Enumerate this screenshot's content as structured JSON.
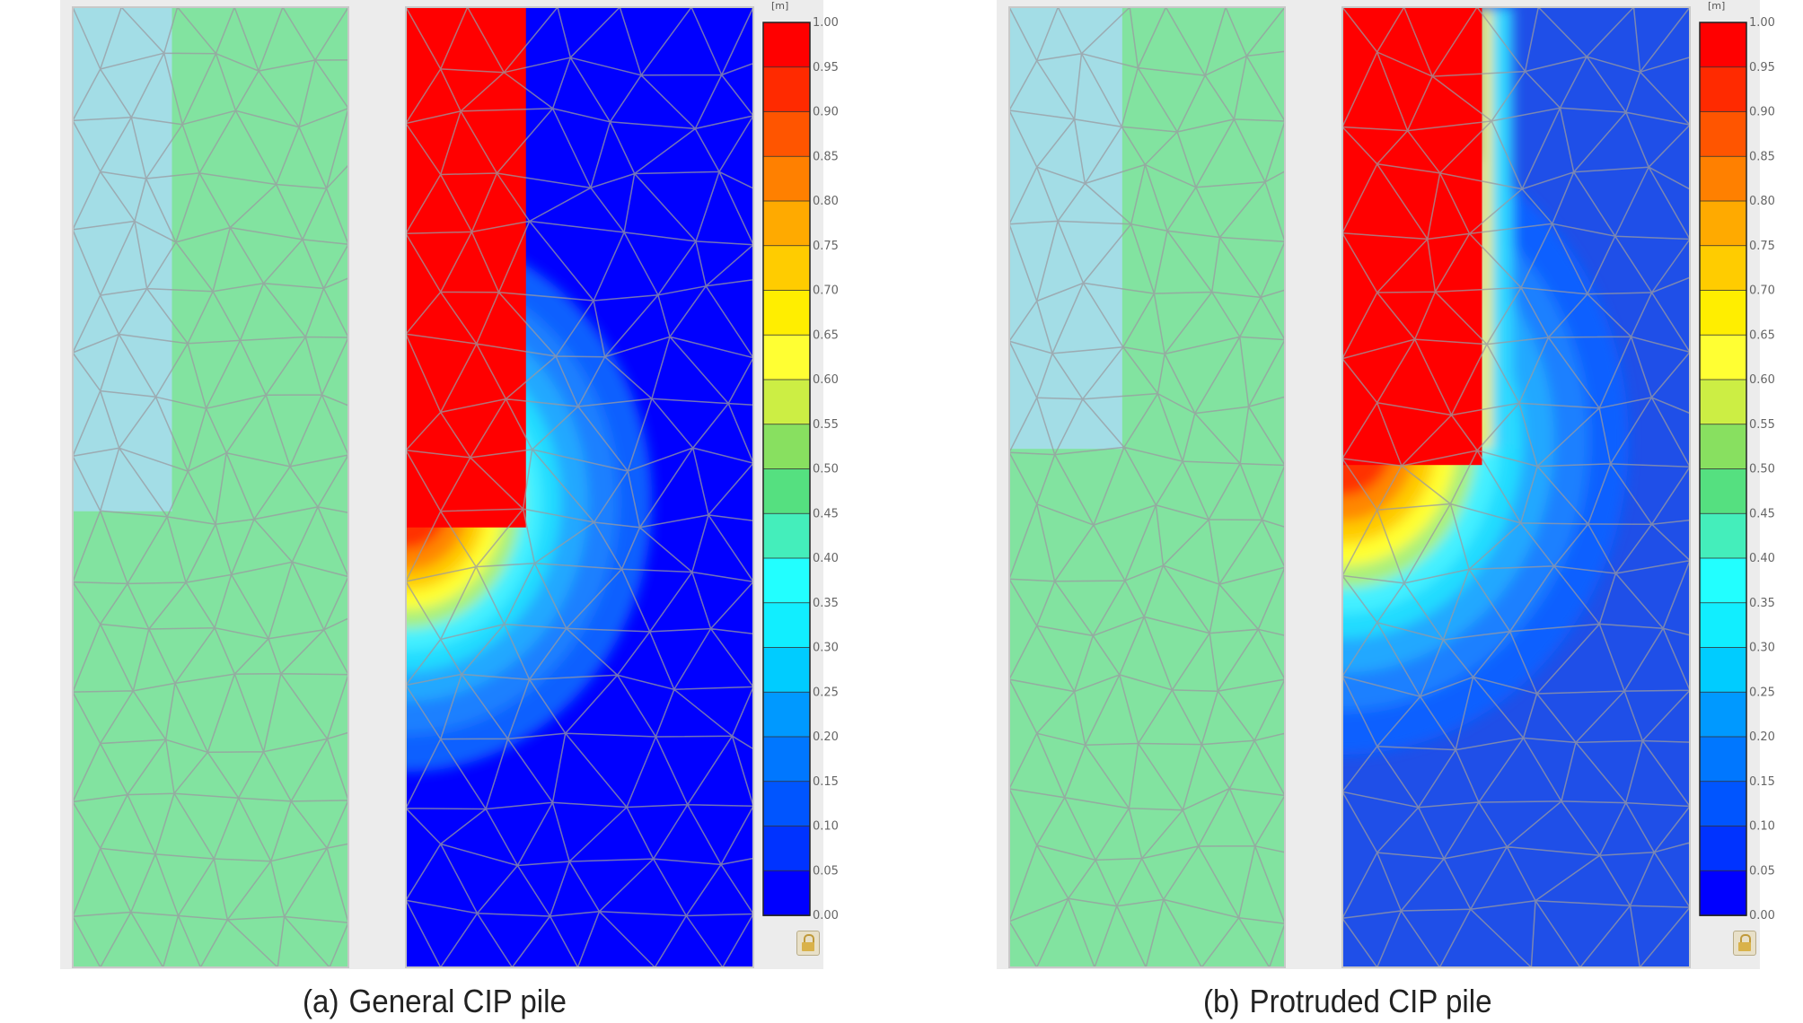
{
  "figure": {
    "panels": [
      {
        "id": "a",
        "caption_label": "(a)",
        "caption_text": "General CIP pile",
        "legend_unit": "[m]",
        "legend_ticks": [
          "1.00",
          "0.95",
          "0.90",
          "0.85",
          "0.80",
          "0.75",
          "0.70",
          "0.65",
          "0.60",
          "0.55",
          "0.50",
          "0.45",
          "0.40",
          "0.35",
          "0.30",
          "0.25",
          "0.20",
          "0.15",
          "0.10",
          "0.05",
          "0.00"
        ],
        "pile_depth_fraction": 0.525,
        "pile_width_fraction": 0.36
      },
      {
        "id": "b",
        "caption_label": "(b)",
        "caption_text": "Protruded CIP pile",
        "legend_unit": "[m]",
        "legend_ticks": [
          "1.00",
          "0.95",
          "0.90",
          "0.85",
          "0.80",
          "0.75",
          "0.70",
          "0.65",
          "0.60",
          "0.55",
          "0.50",
          "0.45",
          "0.40",
          "0.35",
          "0.30",
          "0.25",
          "0.20",
          "0.15",
          "0.10",
          "0.05",
          "0.00"
        ],
        "pile_depth_fraction": 0.46,
        "pile_width_fraction": 0.41
      }
    ],
    "legend_colors": [
      "#ff0000",
      "#ff2a00",
      "#ff5500",
      "#ff8000",
      "#ffaa00",
      "#ffcc00",
      "#ffee00",
      "#ffff33",
      "#ccee44",
      "#88e060",
      "#55e080",
      "#44eebb",
      "#22ffff",
      "#11eeff",
      "#00ccff",
      "#0099ff",
      "#0077ff",
      "#0055ff",
      "#0033ff",
      "#0000ff"
    ],
    "colors": {
      "pile_material": "#a3dde6",
      "soil_material": "#82e3a0",
      "mesh_line": "#9a9aa0",
      "field_max": "#ff0000",
      "field_min": "#0000ff"
    }
  }
}
